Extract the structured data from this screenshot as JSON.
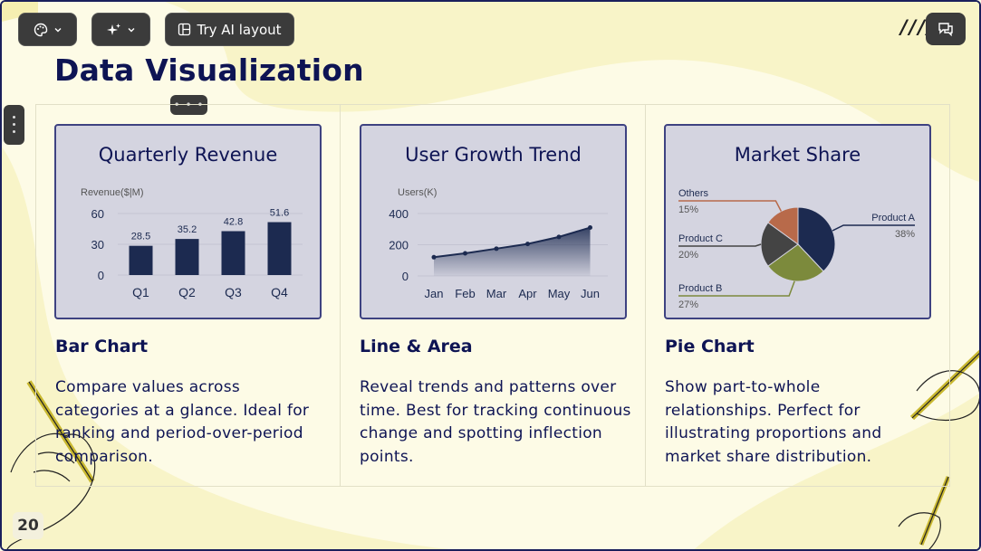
{
  "toolbar": {
    "theme_icon": "palette-icon",
    "ai_icon": "sparkle-icon",
    "ai_layout_label": "Try AI layout",
    "comment_icon": "comment-icon"
  },
  "slide": {
    "title": "Data Visualization",
    "page_number": "20",
    "decor_slashes": "////"
  },
  "sections": [
    {
      "heading": "Bar Chart",
      "text": "Compare values across categories at a glance. Ideal for ranking and period-over-period comparison."
    },
    {
      "heading": "Line & Area",
      "text": "Reveal trends and patterns over time. Best for tracking continuous change and spotting inflection points."
    },
    {
      "heading": "Pie Chart",
      "text": "Show part-to-whole relationships. Perfect for illustrating proportions and market share distribution."
    }
  ],
  "colors": {
    "navy": "#1c2a50",
    "brown": "#b86a4a",
    "dark_gray": "#444444",
    "olive": "#7c8a3c",
    "card_bg": "#d4d4e0"
  },
  "chart_data": [
    {
      "type": "bar",
      "title": "Quarterly Revenue",
      "ylabel": "Revenue($|M)",
      "categories": [
        "Q1",
        "Q2",
        "Q3",
        "Q4"
      ],
      "values": [
        28.5,
        35.2,
        42.8,
        51.6
      ],
      "value_labels": [
        "28.5",
        "35.2",
        "42.8",
        "51.6"
      ],
      "yticks": [
        "0",
        "30",
        "60"
      ],
      "ylim": [
        0,
        60
      ]
    },
    {
      "type": "area",
      "title": "User Growth Trend",
      "ylabel": "Users(K)",
      "categories": [
        "Jan",
        "Feb",
        "Mar",
        "Apr",
        "May",
        "Jun"
      ],
      "values": [
        120,
        145,
        175,
        205,
        250,
        310
      ],
      "yticks": [
        "0",
        "200",
        "400"
      ],
      "ylim": [
        0,
        400
      ]
    },
    {
      "type": "pie",
      "title": "Market Share",
      "slices": [
        {
          "name": "Product A",
          "value": 38,
          "label": "38%"
        },
        {
          "name": "Product B",
          "value": 27,
          "label": "27%"
        },
        {
          "name": "Product C",
          "value": 20,
          "label": "20%"
        },
        {
          "name": "Others",
          "value": 15,
          "label": "15%"
        }
      ]
    }
  ]
}
